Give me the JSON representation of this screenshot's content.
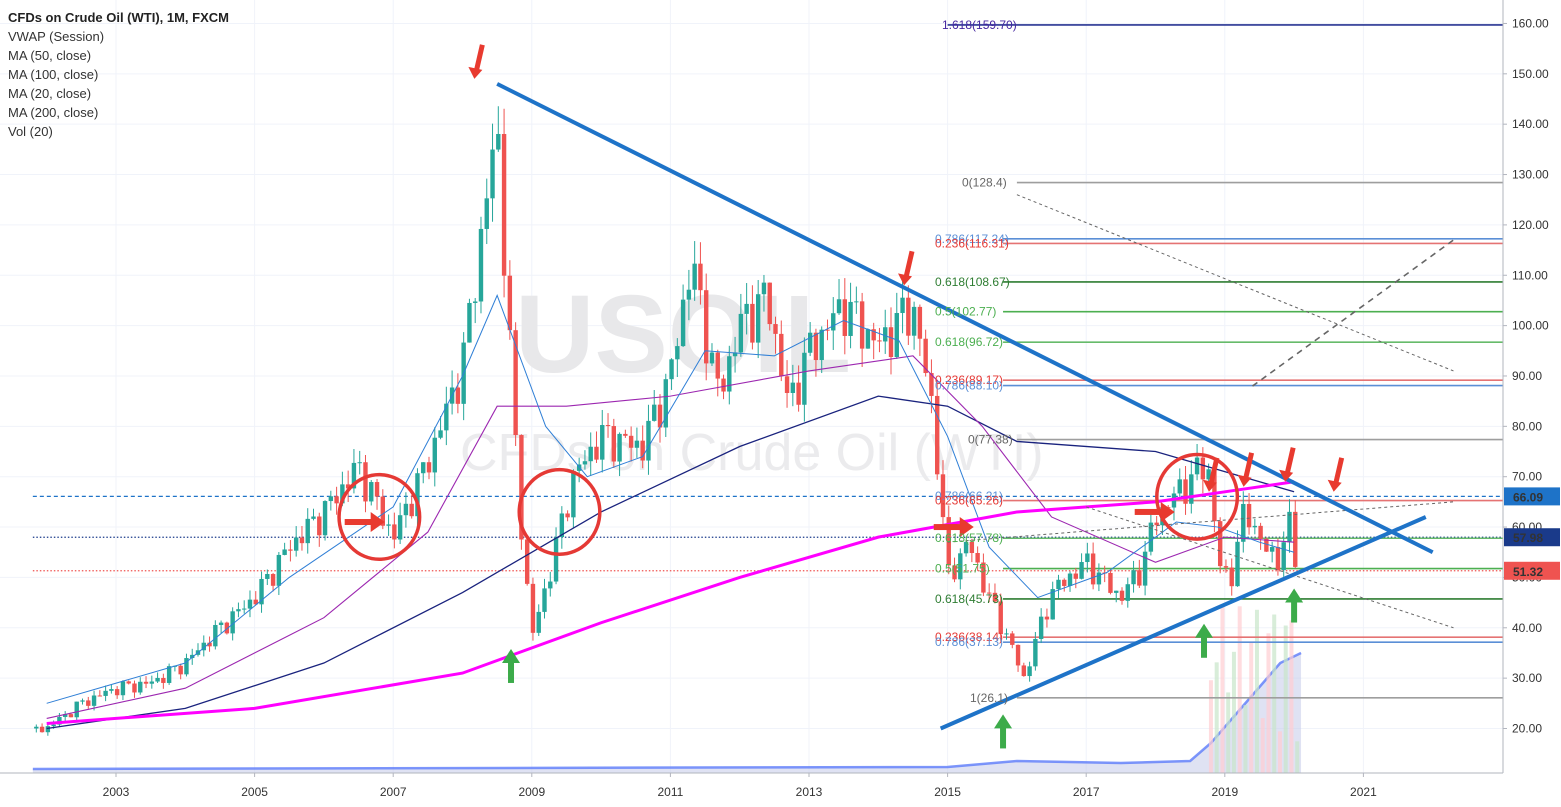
{
  "legend": {
    "title": "CFDs on Crude Oil (WTI), 1M, FXCM",
    "indicators": [
      "VWAP (Session)",
      "MA (50, close)",
      "MA (100, close)",
      "MA (20, close)",
      "MA (200, close)",
      "Vol (20)"
    ]
  },
  "watermark": {
    "symbol": "USOIL",
    "name": "CFDs on Crude Oil (WTI)"
  },
  "colors": {
    "up": "#26a69a",
    "down": "#ef5350",
    "ma20": "#2f7fd6",
    "ma50": "#9c27b0",
    "ma100": "#1a237e",
    "ma200": "#ff00ff",
    "trend": "#1e73c8",
    "arrow_red": "#e83a2f",
    "arrow_green": "#3cab4a",
    "circle": "#e53935"
  },
  "price_labels": [
    {
      "text": "66.09",
      "value": 66.09,
      "bg": "#1e73c8"
    },
    {
      "text": "57.98",
      "value": 57.98,
      "bg": "#1a3a8a"
    },
    {
      "text": "51.32",
      "value": 51.32,
      "bg": "#ef5350"
    }
  ],
  "fib_labels": [
    {
      "text": "1.618(159.70)",
      "value": 159.7,
      "color": "#4527a0"
    },
    {
      "text": "0(128.4)",
      "value": 128.4,
      "color": "#666666"
    },
    {
      "text": "0.786(117.24)",
      "value": 117.24,
      "color": "#5b8fd6"
    },
    {
      "text": "0.236(116.31)",
      "value": 116.31,
      "color": "#e53935"
    },
    {
      "text": "0.618(108.67)",
      "value": 108.67,
      "color": "#2e7d32"
    },
    {
      "text": "0.5(102.77)",
      "value": 102.77,
      "color": "#4caf50"
    },
    {
      "text": "0.618(96.72)",
      "value": 96.72,
      "color": "#4caf50"
    },
    {
      "text": "0.236(89.17)",
      "value": 89.17,
      "color": "#e53935"
    },
    {
      "text": "0.786(88.10)",
      "value": 88.1,
      "color": "#5b8fd6"
    },
    {
      "text": "0(77.38)",
      "value": 77.38,
      "color": "#666666"
    },
    {
      "text": "0.786(66.21)",
      "value": 66.21,
      "color": "#5b8fd6"
    },
    {
      "text": "0.236(65.26)",
      "value": 65.26,
      "color": "#e53935"
    },
    {
      "text": "0.618(57.78)",
      "value": 57.78,
      "color": "#4caf50"
    },
    {
      "text": "0.5(51.75)",
      "value": 51.75,
      "color": "#4caf50"
    },
    {
      "text": "0.618(45.73)",
      "value": 45.73,
      "color": "#2e7d32"
    },
    {
      "text": "0.236(38.14)",
      "value": 38.14,
      "color": "#e53935"
    },
    {
      "text": "0.786(37.13)",
      "value": 37.13,
      "color": "#5b8fd6"
    },
    {
      "text": "1(26.1)",
      "value": 26.1,
      "color": "#666666"
    }
  ],
  "chart_data": {
    "type": "candlestick",
    "title": "CFDs on Crude Oil (WTI), 1M, FXCM",
    "x_range": [
      2001.8,
      2022.3
    ],
    "ylim": [
      10,
      165
    ],
    "x_ticks": [
      2003,
      2005,
      2007,
      2009,
      2011,
      2013,
      2015,
      2017,
      2019,
      2021
    ],
    "y_ticks": [
      20,
      30,
      40,
      50,
      60,
      70,
      80,
      90,
      100,
      110,
      120,
      130,
      140,
      150,
      160
    ],
    "price_path": [
      [
        2001.8,
        20
      ],
      [
        2002.0,
        20
      ],
      [
        2002.5,
        25
      ],
      [
        2003.0,
        28
      ],
      [
        2003.5,
        29
      ],
      [
        2004.0,
        33
      ],
      [
        2004.5,
        40
      ],
      [
        2005.0,
        46
      ],
      [
        2005.5,
        56
      ],
      [
        2006.0,
        63
      ],
      [
        2006.5,
        72
      ],
      [
        2007.0,
        58
      ],
      [
        2007.5,
        73
      ],
      [
        2008.0,
        92
      ],
      [
        2008.5,
        140
      ],
      [
        2008.8,
        68
      ],
      [
        2009.0,
        38
      ],
      [
        2009.2,
        48
      ],
      [
        2009.6,
        70
      ],
      [
        2010.0,
        78
      ],
      [
        2010.6,
        76
      ],
      [
        2011.0,
        90
      ],
      [
        2011.3,
        113
      ],
      [
        2011.7,
        86
      ],
      [
        2012.0,
        100
      ],
      [
        2012.4,
        106
      ],
      [
        2012.7,
        84
      ],
      [
        2013.0,
        95
      ],
      [
        2013.5,
        104
      ],
      [
        2014.0,
        96
      ],
      [
        2014.5,
        104
      ],
      [
        2014.8,
        82
      ],
      [
        2015.0,
        50
      ],
      [
        2015.3,
        57
      ],
      [
        2015.6,
        46
      ],
      [
        2015.9,
        37
      ],
      [
        2016.1,
        30
      ],
      [
        2016.5,
        47
      ],
      [
        2017.0,
        53
      ],
      [
        2017.5,
        46
      ],
      [
        2017.8,
        52
      ],
      [
        2018.0,
        62
      ],
      [
        2018.4,
        68
      ],
      [
        2018.75,
        73
      ],
      [
        2018.95,
        50
      ],
      [
        2019.1,
        51
      ],
      [
        2019.3,
        64
      ],
      [
        2019.6,
        55
      ],
      [
        2019.8,
        54
      ],
      [
        2019.95,
        61
      ],
      [
        2020.05,
        51.32
      ]
    ],
    "ma200": [
      [
        2002.0,
        21
      ],
      [
        2005.0,
        24
      ],
      [
        2008.0,
        31
      ],
      [
        2010.0,
        41
      ],
      [
        2012.0,
        50
      ],
      [
        2014.0,
        58
      ],
      [
        2016.0,
        63
      ],
      [
        2018.0,
        65
      ],
      [
        2019.0,
        67
      ],
      [
        2020.0,
        69
      ]
    ],
    "ma100": [
      [
        2002.0,
        20
      ],
      [
        2004.0,
        24
      ],
      [
        2006.0,
        33
      ],
      [
        2008.0,
        47
      ],
      [
        2010.0,
        63
      ],
      [
        2012.0,
        76
      ],
      [
        2014.0,
        86
      ],
      [
        2015.0,
        84
      ],
      [
        2016.0,
        77
      ],
      [
        2018.0,
        75
      ],
      [
        2020.0,
        67
      ]
    ],
    "ma50": [
      [
        2002.0,
        22
      ],
      [
        2004.0,
        28
      ],
      [
        2006.0,
        42
      ],
      [
        2007.5,
        59
      ],
      [
        2008.5,
        84
      ],
      [
        2009.5,
        84
      ],
      [
        2011.0,
        86
      ],
      [
        2013.0,
        91
      ],
      [
        2014.5,
        94
      ],
      [
        2015.5,
        80
      ],
      [
        2016.5,
        62
      ],
      [
        2018.0,
        53
      ],
      [
        2019.0,
        58
      ],
      [
        2020.0,
        57
      ]
    ],
    "ma20": [
      [
        2002.0,
        25
      ],
      [
        2004.0,
        33
      ],
      [
        2005.5,
        50
      ],
      [
        2007.0,
        64
      ],
      [
        2008.0,
        90
      ],
      [
        2008.5,
        106
      ],
      [
        2009.2,
        80
      ],
      [
        2009.8,
        70
      ],
      [
        2010.6,
        74
      ],
      [
        2011.5,
        95
      ],
      [
        2012.5,
        94
      ],
      [
        2013.5,
        101
      ],
      [
        2014.3,
        97
      ],
      [
        2015.0,
        78
      ],
      [
        2015.6,
        56
      ],
      [
        2016.3,
        46
      ],
      [
        2017.3,
        51
      ],
      [
        2018.3,
        61
      ],
      [
        2018.9,
        60
      ],
      [
        2019.5,
        57
      ],
      [
        2020.0,
        55
      ]
    ],
    "volume": [
      [
        2001.8,
        0.02
      ],
      [
        2015.0,
        0.03
      ],
      [
        2016.0,
        0.06
      ],
      [
        2017.5,
        0.05
      ],
      [
        2018.5,
        0.06
      ],
      [
        2018.8,
        0.15
      ],
      [
        2019.3,
        0.35
      ],
      [
        2019.8,
        0.55
      ],
      [
        2020.1,
        0.6
      ]
    ],
    "trendlines": [
      {
        "from": [
          2008.5,
          148
        ],
        "to": [
          2022.0,
          55
        ],
        "color": "#1e73c8"
      },
      {
        "from": [
          2014.9,
          20
        ],
        "to": [
          2021.9,
          62
        ],
        "color": "#1e73c8"
      }
    ],
    "dashed_lines": [
      {
        "from": [
          2015.0,
          57
        ],
        "to": [
          2022.3,
          65
        ]
      },
      {
        "from": [
          2019.4,
          88
        ],
        "to": [
          2022.3,
          117
        ]
      },
      {
        "from": [
          2016.0,
          126
        ],
        "to": [
          2022.3,
          91
        ]
      },
      {
        "from": [
          2017.0,
          64
        ],
        "to": [
          2022.3,
          40
        ]
      }
    ],
    "circles": [
      {
        "center": [
          2006.8,
          62
        ],
        "radius_y": 8
      },
      {
        "center": [
          2009.4,
          63
        ],
        "radius_y": 8
      },
      {
        "center": [
          2018.6,
          66
        ],
        "radius_y": 8
      }
    ],
    "arrows_down": [
      [
        2008.2,
        149
      ],
      [
        2014.4,
        108
      ],
      [
        2018.8,
        67
      ],
      [
        2019.3,
        68
      ],
      [
        2019.9,
        69
      ],
      [
        2020.6,
        67
      ]
    ],
    "arrows_up": [
      [
        2008.7,
        35
      ],
      [
        2015.8,
        22
      ],
      [
        2018.7,
        40
      ],
      [
        2020.0,
        47
      ]
    ],
    "arrows_right": [
      [
        2006.3,
        61
      ],
      [
        2014.8,
        60
      ],
      [
        2017.7,
        63
      ]
    ],
    "horizontal_levels": [
      {
        "value": 159.7,
        "color": "#283593",
        "x_start": 2015.0
      },
      {
        "value": 128.4,
        "color": "#9e9e9e",
        "x_start": 2016.0
      },
      {
        "value": 117.24,
        "color": "#5b8fd6",
        "x_start": 2015.8
      },
      {
        "value": 116.31,
        "color": "#e57373",
        "x_start": 2015.8
      },
      {
        "value": 108.67,
        "color": "#2e7d32",
        "x_start": 2015.8
      },
      {
        "value": 102.77,
        "color": "#4caf50",
        "x_start": 2015.8
      },
      {
        "value": 96.72,
        "color": "#66bb6a",
        "x_start": 2015.8
      },
      {
        "value": 89.17,
        "color": "#e57373",
        "x_start": 2015.8
      },
      {
        "value": 88.1,
        "color": "#5b8fd6",
        "x_start": 2015.8
      },
      {
        "value": 77.38,
        "color": "#9e9e9e",
        "x_start": 2016.0
      },
      {
        "value": 66.09,
        "color": "#1e73c8",
        "x_start": 2001.8,
        "dashed": true
      },
      {
        "value": 65.26,
        "color": "#e57373",
        "x_start": 2015.8
      },
      {
        "value": 57.98,
        "color": "#1a3a8a",
        "x_start": 2001.8,
        "dotted": true
      },
      {
        "value": 57.78,
        "color": "#66bb6a",
        "x_start": 2015.8
      },
      {
        "value": 51.75,
        "color": "#4caf50",
        "x_start": 2015.8
      },
      {
        "value": 51.32,
        "color": "#ef5350",
        "x_start": 2001.8,
        "dotted": true
      },
      {
        "value": 45.73,
        "color": "#2e7d32",
        "x_start": 2015.8
      },
      {
        "value": 38.14,
        "color": "#e57373",
        "x_start": 2015.8
      },
      {
        "value": 37.13,
        "color": "#5b8fd6",
        "x_start": 2015.8
      },
      {
        "value": 26.1,
        "color": "#9e9e9e",
        "x_start": 2016.0
      }
    ]
  }
}
